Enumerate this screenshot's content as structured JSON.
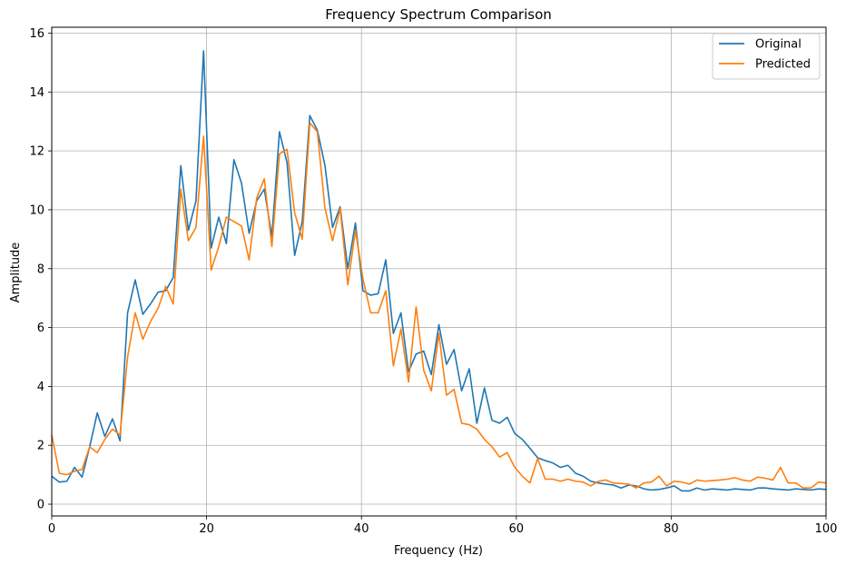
{
  "chart_data": {
    "type": "line",
    "title": "Frequency Spectrum Comparison",
    "xlabel": "Frequency (Hz)",
    "ylabel": "Amplitude",
    "xlim": [
      0,
      100
    ],
    "ylim": [
      -0.4,
      16.2
    ],
    "xticks": [
      0,
      20,
      40,
      60,
      80,
      100
    ],
    "yticks": [
      0,
      2,
      4,
      6,
      8,
      10,
      12,
      14,
      16
    ],
    "grid": true,
    "legend_position": "top-right",
    "x": [
      0,
      0.98,
      1.96,
      2.94,
      3.92,
      4.9,
      5.88,
      6.86,
      7.84,
      8.82,
      9.8,
      10.78,
      11.76,
      12.75,
      13.73,
      14.71,
      15.69,
      16.67,
      17.65,
      18.63,
      19.61,
      20.59,
      21.57,
      22.55,
      23.53,
      24.51,
      25.49,
      26.47,
      27.45,
      28.43,
      29.41,
      30.39,
      31.37,
      32.35,
      33.33,
      34.31,
      35.29,
      36.27,
      37.25,
      38.24,
      39.22,
      40.2,
      41.18,
      42.16,
      43.14,
      44.12,
      45.1,
      46.08,
      47.06,
      48.04,
      49.02,
      50,
      50.98,
      51.96,
      52.94,
      53.92,
      54.9,
      55.88,
      56.86,
      57.84,
      58.82,
      59.8,
      60.78,
      61.76,
      62.75,
      63.73,
      64.71,
      65.69,
      66.67,
      67.65,
      68.63,
      69.61,
      70.59,
      71.57,
      72.55,
      73.53,
      74.51,
      75.49,
      76.47,
      77.45,
      78.43,
      79.41,
      80.39,
      81.37,
      82.35,
      83.33,
      84.31,
      85.29,
      86.27,
      87.25,
      88.24,
      89.22,
      90.2,
      91.18,
      92.16,
      93.14,
      94.12,
      95.1,
      96.08,
      97.06,
      98.04,
      99.02,
      100
    ],
    "series": [
      {
        "name": "Original",
        "color": "#1f77b4",
        "values": [
          0.95,
          0.75,
          0.78,
          1.25,
          0.92,
          1.95,
          3.1,
          2.3,
          2.9,
          2.15,
          6.5,
          7.62,
          6.45,
          6.8,
          7.2,
          7.25,
          7.7,
          11.5,
          9.3,
          10.3,
          15.4,
          8.7,
          9.75,
          8.85,
          11.7,
          10.9,
          9.2,
          10.3,
          10.7,
          9.1,
          12.65,
          11.6,
          8.45,
          9.6,
          13.2,
          12.7,
          11.5,
          9.4,
          10.1,
          8.0,
          9.55,
          7.25,
          7.1,
          7.15,
          8.3,
          5.8,
          6.5,
          4.5,
          5.1,
          5.2,
          4.4,
          6.1,
          4.75,
          5.25,
          3.85,
          4.6,
          2.75,
          3.95,
          2.85,
          2.75,
          2.95,
          2.4,
          2.2,
          1.9,
          1.58,
          1.48,
          1.4,
          1.25,
          1.32,
          1.05,
          0.95,
          0.78,
          0.72,
          0.68,
          0.65,
          0.55,
          0.65,
          0.62,
          0.52,
          0.48,
          0.5,
          0.55,
          0.62,
          0.45,
          0.45,
          0.55,
          0.48,
          0.52,
          0.5,
          0.48,
          0.52,
          0.5,
          0.48,
          0.55,
          0.55,
          0.52,
          0.5,
          0.48,
          0.52,
          0.5,
          0.48,
          0.52,
          0.5
        ],
        "_note_": "values for x positions"
      },
      {
        "name": "Predicted",
        "color": "#ff7f0e",
        "values": [
          2.35,
          1.05,
          1.0,
          1.12,
          1.18,
          1.95,
          1.75,
          2.2,
          2.55,
          2.35,
          5.0,
          6.5,
          5.6,
          6.2,
          6.65,
          7.4,
          6.8,
          10.7,
          8.95,
          9.4,
          12.5,
          7.95,
          8.75,
          9.75,
          9.6,
          9.45,
          8.3,
          10.4,
          11.05,
          8.75,
          11.9,
          12.05,
          9.9,
          9.0,
          12.95,
          12.65,
          10.05,
          8.95,
          10.05,
          7.45,
          9.3,
          7.65,
          6.5,
          6.5,
          7.25,
          4.7,
          5.95,
          4.15,
          6.7,
          4.55,
          3.85,
          5.8,
          3.7,
          3.9,
          2.75,
          2.7,
          2.55,
          2.2,
          1.95,
          1.6,
          1.75,
          1.25,
          0.95,
          0.72,
          1.55,
          0.85,
          0.85,
          0.78,
          0.85,
          0.78,
          0.75,
          0.62,
          0.78,
          0.82,
          0.72,
          0.7,
          0.68,
          0.55,
          0.72,
          0.75,
          0.95,
          0.62,
          0.78,
          0.75,
          0.68,
          0.82,
          0.78,
          0.8,
          0.82,
          0.85,
          0.9,
          0.82,
          0.78,
          0.92,
          0.88,
          0.82,
          1.25,
          0.72,
          0.72,
          0.55,
          0.55,
          0.75,
          0.72
        ]
      }
    ]
  }
}
